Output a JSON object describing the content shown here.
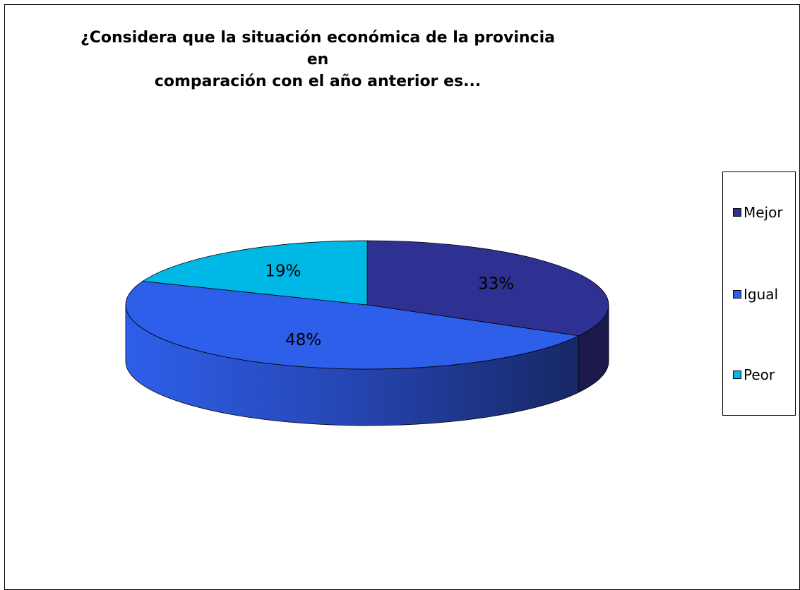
{
  "chart_data": {
    "type": "pie",
    "title_lines": [
      "¿Considera que la situación económica de la provincia en",
      "comparación con el año anterior es..."
    ],
    "categories": [
      "Mejor",
      "Igual",
      "Peor"
    ],
    "values": [
      33,
      48,
      19
    ],
    "data_labels": [
      "33%",
      "48%",
      "19%"
    ],
    "colors": {
      "Mejor": "#2e3192",
      "Igual": "#2e5fea",
      "Peor": "#00b8e6"
    },
    "side_colors": {
      "Mejor": "#1b1a4a",
      "Igual": "#1a2d6e",
      "Peor": "#0a5f7a"
    },
    "style": "3d",
    "start_angle": 90,
    "direction": "clockwise",
    "legend_position": "right"
  }
}
